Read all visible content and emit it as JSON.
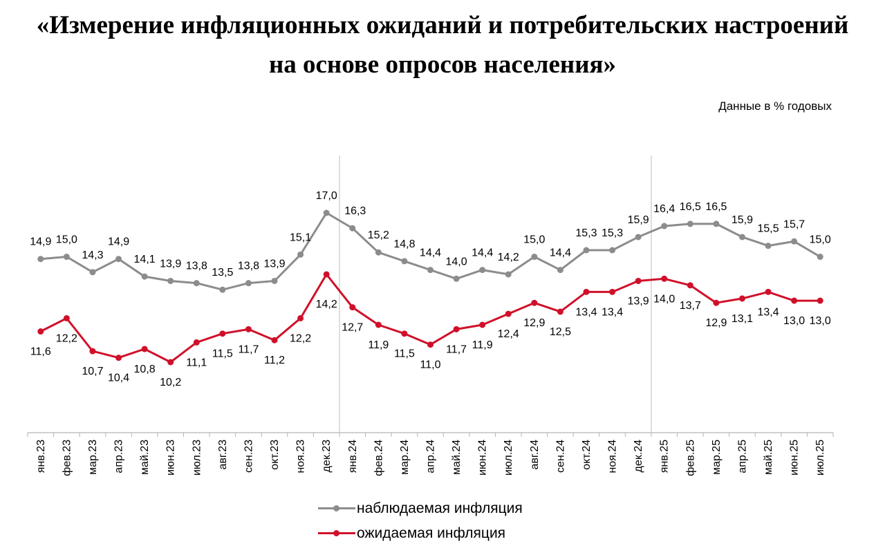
{
  "title_lines": [
    "«Измерение инфляционных ожиданий и потребительских настроений",
    "на основе опросов населения»"
  ],
  "subtitle": "Данные в % годовых",
  "colors": {
    "observed": "#8c8c8c",
    "expected": "#d0102a",
    "axis": "#b3b3b3"
  },
  "chart_data": {
    "type": "line",
    "title": "«Измерение инфляционных ожиданий и потребительских настроений на основе опросов населения»",
    "subtitle": "Данные в % годовых",
    "categories": [
      "янв.23",
      "фев.23",
      "мар.23",
      "апр.23",
      "май.23",
      "июн.23",
      "июл.23",
      "авг.23",
      "сен.23",
      "окт.23",
      "ноя.23",
      "дек.23",
      "янв.24",
      "фев.24",
      "мар.24",
      "апр.24",
      "май.24",
      "июн.24",
      "июл.24",
      "авг.24",
      "сен.24",
      "окт.24",
      "ноя.24",
      "дек.24",
      "янв.25",
      "фев.25",
      "мар.25",
      "апр.25",
      "май.25",
      "июн.25",
      "июл.25"
    ],
    "series": [
      {
        "name": "наблюдаемая инфляция",
        "color": "#8c8c8c",
        "values": [
          14.9,
          15.0,
          14.3,
          14.9,
          14.1,
          13.9,
          13.8,
          13.5,
          13.8,
          13.9,
          15.1,
          17.0,
          16.3,
          15.2,
          14.8,
          14.4,
          14.0,
          14.4,
          14.2,
          15.0,
          14.4,
          15.3,
          15.3,
          15.9,
          16.4,
          16.5,
          16.5,
          15.9,
          15.5,
          15.7,
          15.0
        ],
        "labels": [
          "14,9",
          "15,0",
          "14,3",
          "14,9",
          "14,1",
          "13,9",
          "13,8",
          "13,5",
          "13,8",
          "13,9",
          "15,1",
          "17,0",
          "16,3",
          "15,2",
          "14,8",
          "14,4",
          "14,0",
          "14,4",
          "14,2",
          "15,0",
          "14,4",
          "15,3",
          "15,3",
          "15,9",
          "16,4",
          "16,5",
          "16,5",
          "15,9",
          "15,5",
          "15,7",
          "15,0"
        ]
      },
      {
        "name": "ожидаемая инфляция",
        "color": "#d0102a",
        "values": [
          11.6,
          12.2,
          10.7,
          10.4,
          10.8,
          10.2,
          11.1,
          11.5,
          11.7,
          11.2,
          12.2,
          14.2,
          12.7,
          11.9,
          11.5,
          11.0,
          11.7,
          11.9,
          12.4,
          12.9,
          12.5,
          13.4,
          13.4,
          13.9,
          14.0,
          13.7,
          12.9,
          13.1,
          13.4,
          13.0,
          13.0
        ],
        "labels": [
          "11,6",
          "12,2",
          "10,7",
          "10,4",
          "10,8",
          "10,2",
          "11,1",
          "11,5",
          "11,7",
          "11,2",
          "12,2",
          "14,2",
          "12,7",
          "11,9",
          "11,5",
          "11,0",
          "11,7",
          "11,9",
          "12,4",
          "12,9",
          "12,5",
          "13,4",
          "13,4",
          "13,9",
          "14,0",
          "13,7",
          "12,9",
          "13,1",
          "13,4",
          "13,0",
          "13,0"
        ]
      }
    ],
    "year_separators_after": [
      "дек.23",
      "дек.24"
    ],
    "legend_position": "bottom-center",
    "grid": false
  }
}
